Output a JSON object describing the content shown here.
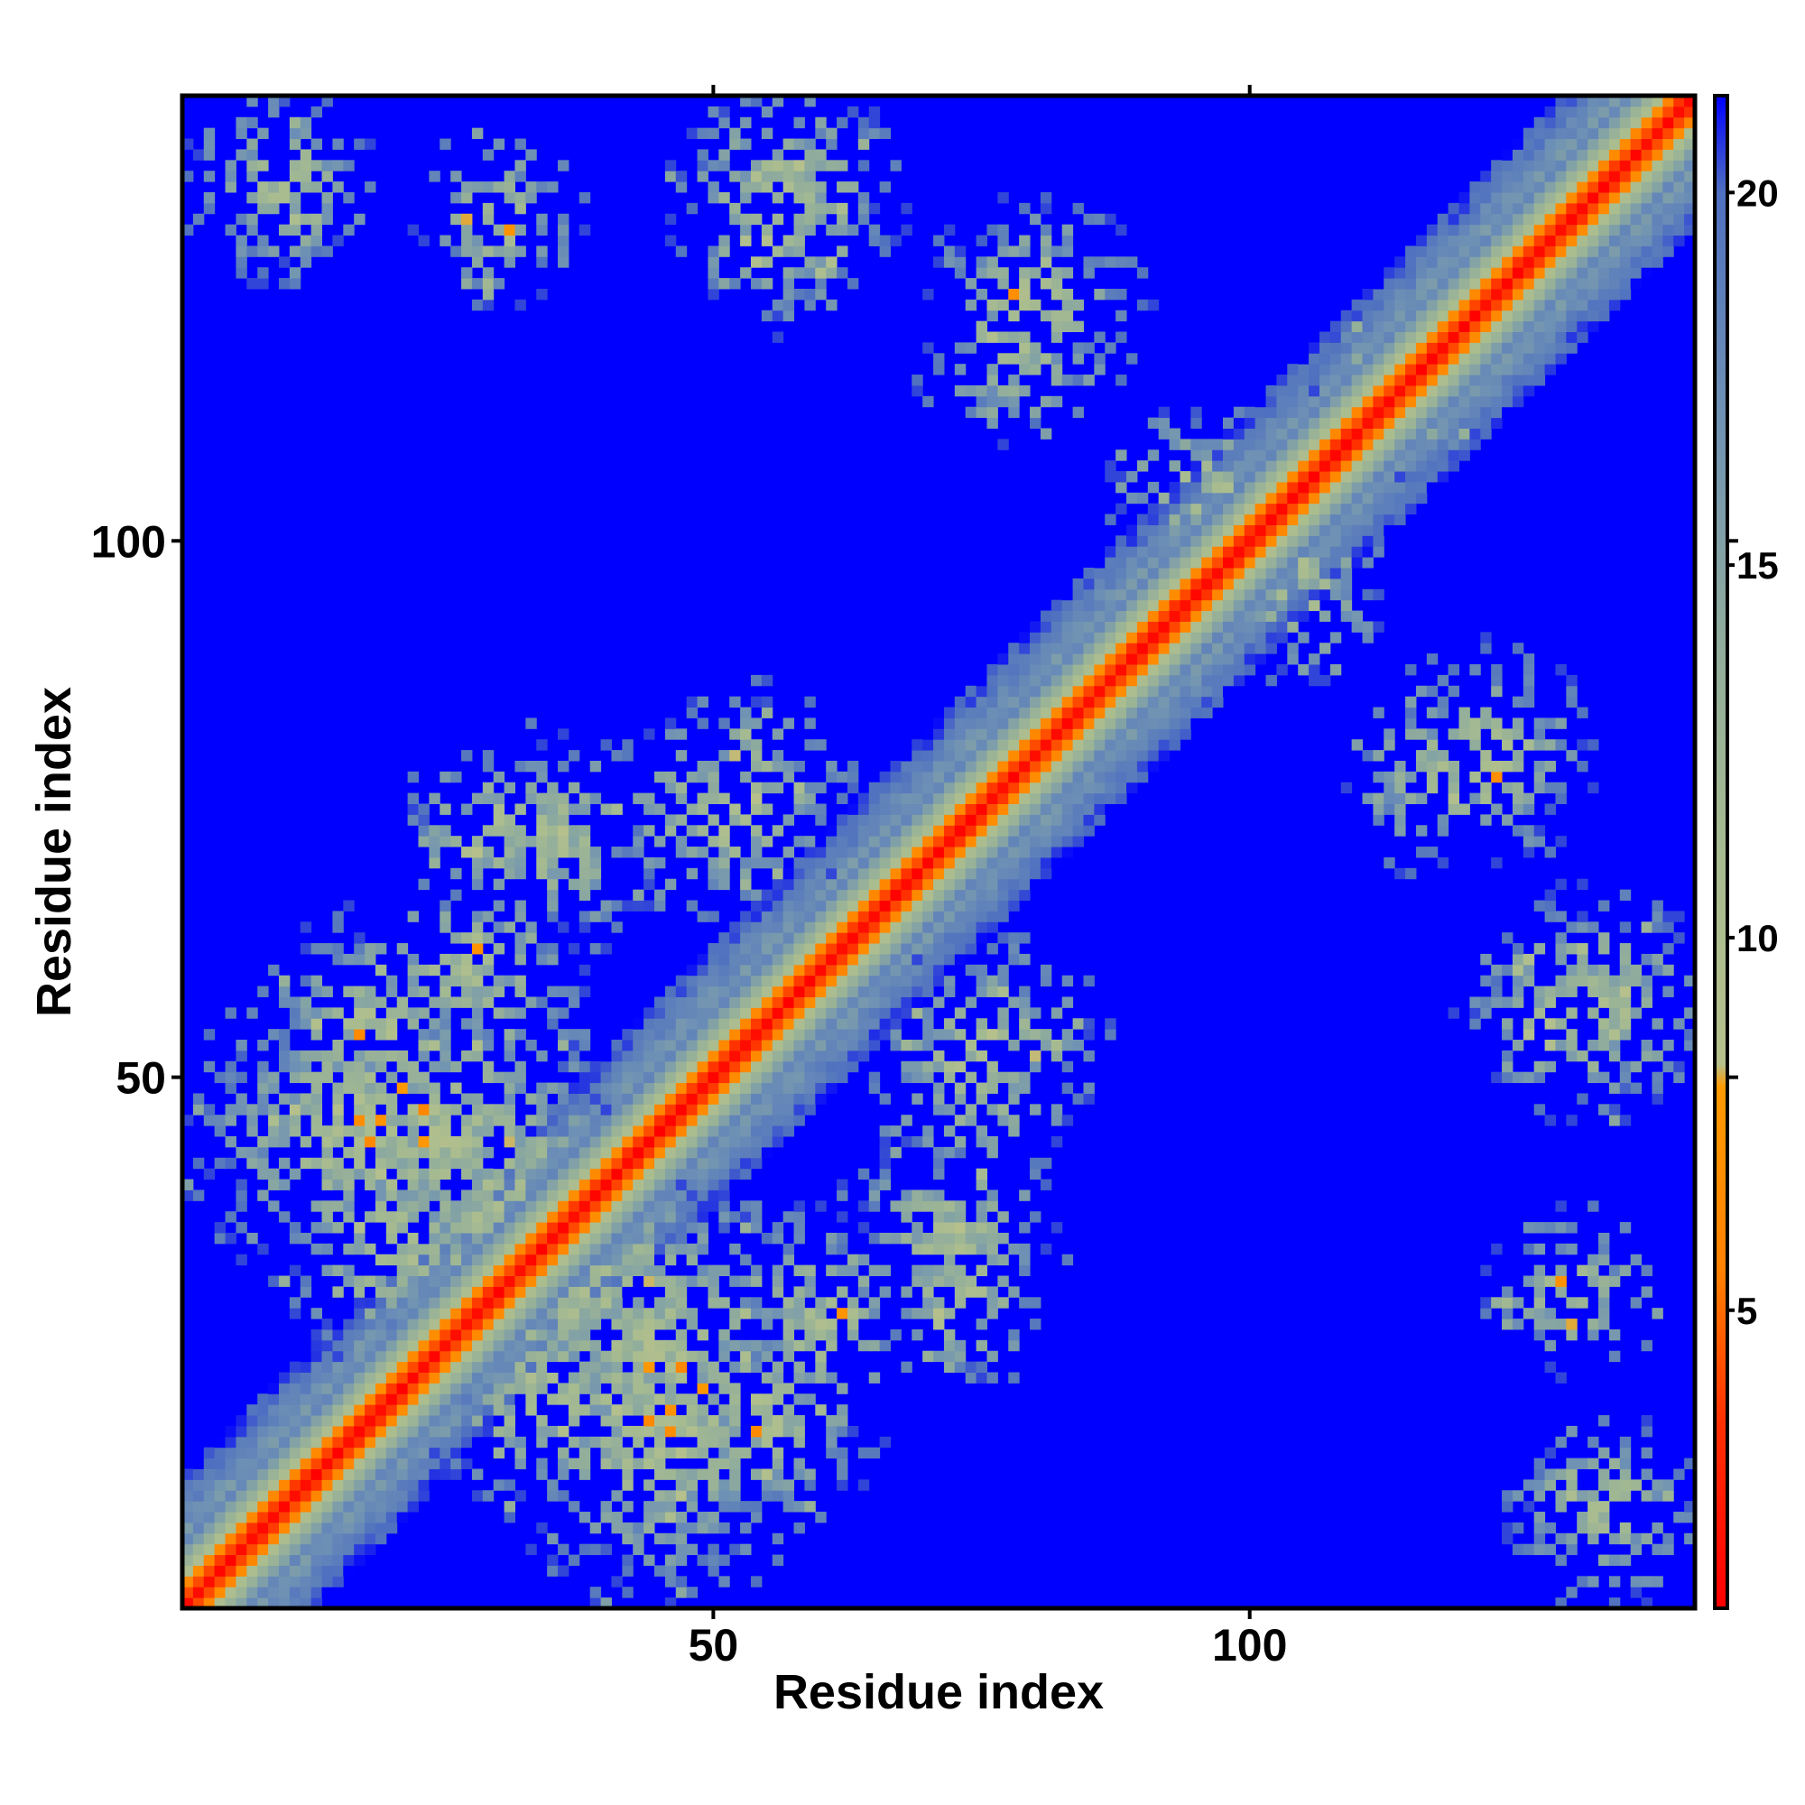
{
  "chart_data": {
    "type": "heatmap",
    "title": "",
    "xlabel": "Residue index",
    "ylabel": "Residue index",
    "n_residues": 141,
    "xlim": [
      1,
      141
    ],
    "ylim": [
      1,
      141
    ],
    "x_ticks": [
      50,
      100
    ],
    "y_ticks": [
      50,
      100
    ],
    "colorbar": {
      "range": [
        1,
        21.3
      ],
      "ticks": [
        5,
        10,
        15,
        20
      ],
      "stops": [
        {
          "value": 1,
          "color": "#ff0000"
        },
        {
          "value": 3.5,
          "color": "#ff3000"
        },
        {
          "value": 5.5,
          "color": "#ff8000"
        },
        {
          "value": 8.0,
          "color": "#ff9a00"
        },
        {
          "value": 8.3,
          "color": "#b6c08c"
        },
        {
          "value": 11,
          "color": "#a8bc90"
        },
        {
          "value": 14,
          "color": "#90ac9c"
        },
        {
          "value": 17,
          "color": "#6f92b4"
        },
        {
          "value": 20,
          "color": "#4f70c0"
        },
        {
          "value": 21.3,
          "color": "#0000ff"
        }
      ]
    },
    "background_value": 21.3,
    "diagonal": {
      "width": 6.5
    },
    "contact_blobs": [
      {
        "x": 16,
        "y": 45,
        "r": 13,
        "density": 0.78
      },
      {
        "x": 30,
        "y": 38,
        "r": 11,
        "density": 0.75
      },
      {
        "x": 45,
        "y": 25,
        "r": 14,
        "density": 0.72
      },
      {
        "x": 55,
        "y": 18,
        "r": 9,
        "density": 0.6
      },
      {
        "x": 27,
        "y": 60,
        "r": 9,
        "density": 0.55
      },
      {
        "x": 35,
        "y": 72,
        "r": 9,
        "density": 0.6
      },
      {
        "x": 53,
        "y": 76,
        "r": 9,
        "density": 0.6
      },
      {
        "x": 74,
        "y": 50,
        "r": 9,
        "density": 0.6
      },
      {
        "x": 73,
        "y": 30,
        "r": 8,
        "density": 0.55
      },
      {
        "x": 10,
        "y": 133,
        "r": 7,
        "density": 0.55
      },
      {
        "x": 57,
        "y": 130,
        "r": 9,
        "density": 0.55
      },
      {
        "x": 78,
        "y": 118,
        "r": 8,
        "density": 0.5
      },
      {
        "x": 95,
        "y": 105,
        "r": 7,
        "density": 0.5
      },
      {
        "x": 113,
        "y": 115,
        "r": 6,
        "density": 0.5
      },
      {
        "x": 122,
        "y": 80,
        "r": 9,
        "density": 0.55
      },
      {
        "x": 133,
        "y": 57,
        "r": 9,
        "density": 0.6
      },
      {
        "x": 133,
        "y": 10,
        "r": 8,
        "density": 0.6
      },
      {
        "x": 130,
        "y": 30,
        "r": 7,
        "density": 0.45
      },
      {
        "x": 35,
        "y": 20,
        "r": 10,
        "density": 0.6
      }
    ]
  }
}
